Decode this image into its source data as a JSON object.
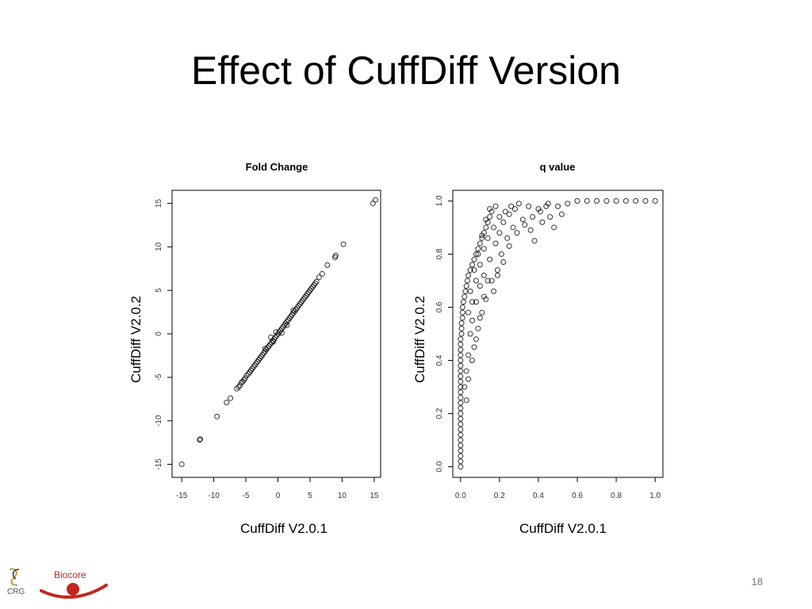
{
  "slide": {
    "title": "Effect of CuffDiff Version",
    "page_number": "18"
  },
  "logos": {
    "crg": "CRG",
    "biocore": "Biocore"
  },
  "colors": {
    "marker": "#000000",
    "biocore_red": "#c0281e",
    "crg_gold": "#c8a24a"
  },
  "chart_data": [
    {
      "type": "scatter",
      "title": "Fold Change",
      "xlabel": "CuffDiff V2.0.1",
      "ylabel": "CuffDiff V2.0.2",
      "xlim": [
        -16.5,
        16
      ],
      "ylim": [
        -16.5,
        16.5
      ],
      "xticks": [
        -15,
        -10,
        -5,
        0,
        5,
        10,
        15
      ],
      "yticks": [
        -15,
        -10,
        -5,
        0,
        5,
        10,
        15
      ],
      "xtick_labels": [
        "-15",
        "-10",
        "-5",
        "0",
        "5",
        "10",
        "15"
      ],
      "ytick_labels": [
        "-15",
        "-10",
        "-5",
        "0",
        "5",
        "10",
        "15"
      ],
      "marker": "open-circle",
      "points": [
        [
          -15.0,
          -15.0
        ],
        [
          -12.2,
          -12.2
        ],
        [
          -12.1,
          -12.1
        ],
        [
          -9.5,
          -9.5
        ],
        [
          -8.0,
          -7.9
        ],
        [
          -7.4,
          -7.4
        ],
        [
          -6.4,
          -6.3
        ],
        [
          -6.1,
          -6.1
        ],
        [
          -5.9,
          -5.9
        ],
        [
          -5.7,
          -5.6
        ],
        [
          -5.5,
          -5.5
        ],
        [
          -5.3,
          -5.3
        ],
        [
          -5.1,
          -5.1
        ],
        [
          -4.9,
          -4.8
        ],
        [
          -4.6,
          -4.6
        ],
        [
          -4.4,
          -4.4
        ],
        [
          -4.2,
          -4.2
        ],
        [
          -4.0,
          -4.0
        ],
        [
          -3.8,
          -3.8
        ],
        [
          -3.6,
          -3.6
        ],
        [
          -3.4,
          -3.4
        ],
        [
          -3.2,
          -3.2
        ],
        [
          -3.0,
          -3.0
        ],
        [
          -2.8,
          -2.8
        ],
        [
          -2.6,
          -2.6
        ],
        [
          -2.4,
          -2.4
        ],
        [
          -2.2,
          -2.2
        ],
        [
          -2.0,
          -2.0
        ],
        [
          -1.8,
          -1.8
        ],
        [
          -1.6,
          -1.6
        ],
        [
          -1.4,
          -1.4
        ],
        [
          -1.2,
          -1.2
        ],
        [
          -1.0,
          -1.0
        ],
        [
          -0.8,
          -0.8
        ],
        [
          -0.6,
          -0.6
        ],
        [
          -0.4,
          -0.4
        ],
        [
          -0.2,
          -0.2
        ],
        [
          0.0,
          0.0
        ],
        [
          0.2,
          0.2
        ],
        [
          0.4,
          0.4
        ],
        [
          0.6,
          0.6
        ],
        [
          0.8,
          0.8
        ],
        [
          1.0,
          1.0
        ],
        [
          1.2,
          1.2
        ],
        [
          1.4,
          1.4
        ],
        [
          1.6,
          1.6
        ],
        [
          1.8,
          1.8
        ],
        [
          2.0,
          2.0
        ],
        [
          2.2,
          2.2
        ],
        [
          2.4,
          2.4
        ],
        [
          2.6,
          2.6
        ],
        [
          2.8,
          2.8
        ],
        [
          3.0,
          3.0
        ],
        [
          3.2,
          3.2
        ],
        [
          3.4,
          3.4
        ],
        [
          3.6,
          3.6
        ],
        [
          3.8,
          3.8
        ],
        [
          4.0,
          4.0
        ],
        [
          4.2,
          4.2
        ],
        [
          4.4,
          4.4
        ],
        [
          4.6,
          4.6
        ],
        [
          4.8,
          4.8
        ],
        [
          5.0,
          5.0
        ],
        [
          5.2,
          5.2
        ],
        [
          5.4,
          5.4
        ],
        [
          5.6,
          5.6
        ],
        [
          5.8,
          5.8
        ],
        [
          6.0,
          6.0
        ],
        [
          -1.1,
          -0.4
        ],
        [
          -0.7,
          -0.9
        ],
        [
          -0.3,
          0.2
        ],
        [
          0.6,
          0.1
        ],
        [
          1.4,
          1.0
        ],
        [
          -2.0,
          -1.7
        ],
        [
          2.4,
          2.7
        ],
        [
          6.4,
          6.5
        ],
        [
          6.9,
          6.9
        ],
        [
          7.7,
          7.9
        ],
        [
          8.9,
          8.8
        ],
        [
          9.0,
          9.0
        ],
        [
          10.2,
          10.3
        ],
        [
          14.8,
          15.0
        ],
        [
          15.2,
          15.4
        ]
      ]
    },
    {
      "type": "scatter",
      "title": "q value",
      "xlabel": "CuffDiff V2.0.1",
      "ylabel": "CuffDiff V2.0.2",
      "xlim": [
        -0.04,
        1.04
      ],
      "ylim": [
        -0.04,
        1.04
      ],
      "xticks": [
        0.0,
        0.2,
        0.4,
        0.6,
        0.8,
        1.0
      ],
      "yticks": [
        0.0,
        0.2,
        0.4,
        0.6,
        0.8,
        1.0
      ],
      "xtick_labels": [
        "0.0",
        "0.2",
        "0.4",
        "0.6",
        "0.8",
        "1.0"
      ],
      "ytick_labels": [
        "0.0",
        "0.2",
        "0.4",
        "0.6",
        "0.8",
        "1.0"
      ],
      "marker": "open-circle",
      "points": [
        [
          0.0,
          0.0
        ],
        [
          0.0,
          0.02
        ],
        [
          0.0,
          0.04
        ],
        [
          0.0,
          0.06
        ],
        [
          0.0,
          0.08
        ],
        [
          0.0,
          0.1
        ],
        [
          0.0,
          0.12
        ],
        [
          0.0,
          0.14
        ],
        [
          0.0,
          0.16
        ],
        [
          0.0,
          0.18
        ],
        [
          0.0,
          0.2
        ],
        [
          0.0,
          0.22
        ],
        [
          0.0,
          0.24
        ],
        [
          0.0,
          0.26
        ],
        [
          0.0,
          0.28
        ],
        [
          0.0,
          0.3
        ],
        [
          0.0,
          0.32
        ],
        [
          0.0,
          0.34
        ],
        [
          0.0,
          0.36
        ],
        [
          0.0,
          0.38
        ],
        [
          0.0,
          0.4
        ],
        [
          0.0,
          0.42
        ],
        [
          0.0,
          0.44
        ],
        [
          0.0,
          0.46
        ],
        [
          0.0,
          0.48
        ],
        [
          0.005,
          0.5
        ],
        [
          0.005,
          0.52
        ],
        [
          0.005,
          0.54
        ],
        [
          0.01,
          0.56
        ],
        [
          0.01,
          0.58
        ],
        [
          0.01,
          0.6
        ],
        [
          0.015,
          0.62
        ],
        [
          0.02,
          0.64
        ],
        [
          0.025,
          0.66
        ],
        [
          0.03,
          0.68
        ],
        [
          0.035,
          0.7
        ],
        [
          0.04,
          0.72
        ],
        [
          0.05,
          0.74
        ],
        [
          0.06,
          0.76
        ],
        [
          0.07,
          0.78
        ],
        [
          0.08,
          0.8
        ],
        [
          0.09,
          0.82
        ],
        [
          0.1,
          0.84
        ],
        [
          0.11,
          0.86
        ],
        [
          0.12,
          0.88
        ],
        [
          0.13,
          0.9
        ],
        [
          0.14,
          0.92
        ],
        [
          0.15,
          0.94
        ],
        [
          0.16,
          0.96
        ],
        [
          0.18,
          0.98
        ],
        [
          0.02,
          0.3
        ],
        [
          0.03,
          0.36
        ],
        [
          0.04,
          0.42
        ],
        [
          0.05,
          0.5
        ],
        [
          0.06,
          0.55
        ],
        [
          0.08,
          0.62
        ],
        [
          0.1,
          0.68
        ],
        [
          0.12,
          0.72
        ],
        [
          0.15,
          0.78
        ],
        [
          0.18,
          0.84
        ],
        [
          0.2,
          0.88
        ],
        [
          0.22,
          0.92
        ],
        [
          0.25,
          0.95
        ],
        [
          0.28,
          0.97
        ],
        [
          0.3,
          0.99
        ],
        [
          0.35,
          0.98
        ],
        [
          0.4,
          0.97
        ],
        [
          0.45,
          0.99
        ],
        [
          0.5,
          0.98
        ],
        [
          0.55,
          0.99
        ],
        [
          0.07,
          0.45
        ],
        [
          0.09,
          0.52
        ],
        [
          0.11,
          0.58
        ],
        [
          0.13,
          0.63
        ],
        [
          0.16,
          0.7
        ],
        [
          0.19,
          0.74
        ],
        [
          0.21,
          0.8
        ],
        [
          0.24,
          0.86
        ],
        [
          0.27,
          0.9
        ],
        [
          0.32,
          0.93
        ],
        [
          0.36,
          0.89
        ],
        [
          0.38,
          0.85
        ],
        [
          0.42,
          0.92
        ],
        [
          0.46,
          0.94
        ],
        [
          0.48,
          0.9
        ],
        [
          0.52,
          0.95
        ],
        [
          0.06,
          0.62
        ],
        [
          0.08,
          0.7
        ],
        [
          0.1,
          0.76
        ],
        [
          0.12,
          0.82
        ],
        [
          0.14,
          0.86
        ],
        [
          0.17,
          0.9
        ],
        [
          0.2,
          0.94
        ],
        [
          0.23,
          0.96
        ],
        [
          0.26,
          0.98
        ],
        [
          0.04,
          0.58
        ],
        [
          0.05,
          0.66
        ],
        [
          0.07,
          0.74
        ],
        [
          0.09,
          0.8
        ],
        [
          0.11,
          0.87
        ],
        [
          0.13,
          0.93
        ],
        [
          0.15,
          0.97
        ],
        [
          0.03,
          0.25
        ],
        [
          0.04,
          0.33
        ],
        [
          0.06,
          0.4
        ],
        [
          0.08,
          0.48
        ],
        [
          0.1,
          0.56
        ],
        [
          0.12,
          0.64
        ],
        [
          0.14,
          0.7
        ],
        [
          0.17,
          0.66
        ],
        [
          0.19,
          0.72
        ],
        [
          0.22,
          0.77
        ],
        [
          0.25,
          0.83
        ],
        [
          0.29,
          0.88
        ],
        [
          0.33,
          0.91
        ],
        [
          0.37,
          0.94
        ],
        [
          0.41,
          0.96
        ],
        [
          0.44,
          0.98
        ],
        [
          0.6,
          1.0
        ],
        [
          0.65,
          1.0
        ],
        [
          0.7,
          1.0
        ],
        [
          0.75,
          1.0
        ],
        [
          0.8,
          1.0
        ],
        [
          0.85,
          1.0
        ],
        [
          0.9,
          1.0
        ],
        [
          0.95,
          1.0
        ],
        [
          1.0,
          1.0
        ]
      ]
    }
  ]
}
